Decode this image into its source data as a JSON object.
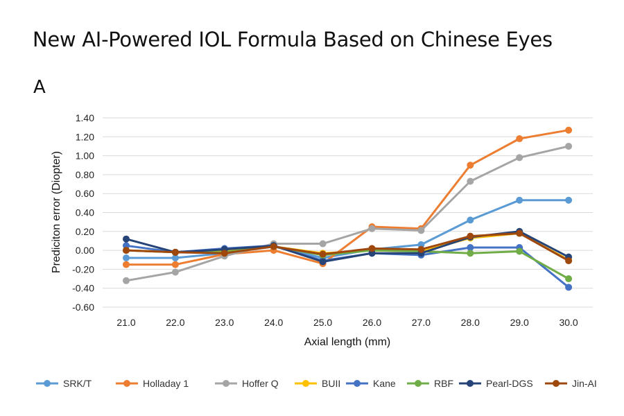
{
  "page_title": "New AI-Powered IOL Formula Based on Chinese Eyes",
  "panel_label": "A",
  "chart_data": {
    "type": "line",
    "title": "",
    "xlabel": "Axial length (mm)",
    "ylabel": "Prediciton error (Diopter)",
    "categories": [
      "21.0",
      "22.0",
      "23.0",
      "24.0",
      "25.0",
      "26.0",
      "27.0",
      "28.0",
      "29.0",
      "30.0"
    ],
    "ylim": [
      -0.6,
      1.4
    ],
    "yticks": [
      "-0.60",
      "-0.40",
      "-0.20",
      "0.00",
      "0.20",
      "0.40",
      "0.60",
      "0.80",
      "1.00",
      "1.20",
      "1.40"
    ],
    "grid": "horizontal",
    "legend_position": "bottom",
    "series": [
      {
        "name": "SRK/T",
        "color": "#5b9bd5",
        "values": [
          -0.08,
          -0.08,
          -0.03,
          0.04,
          -0.08,
          0.01,
          0.06,
          0.32,
          0.53,
          0.53
        ]
      },
      {
        "name": "Holladay 1",
        "color": "#ed7d31",
        "values": [
          -0.15,
          -0.15,
          -0.04,
          0.0,
          -0.14,
          0.25,
          0.23,
          0.9,
          1.18,
          1.27
        ]
      },
      {
        "name": "Hoffer Q",
        "color": "#a5a5a5",
        "values": [
          -0.32,
          -0.23,
          -0.06,
          0.07,
          0.07,
          0.23,
          0.21,
          0.73,
          0.98,
          1.1
        ]
      },
      {
        "name": "BUII",
        "color": "#ffc000",
        "values": [
          0.0,
          -0.02,
          -0.01,
          0.04,
          -0.03,
          0.0,
          -0.01,
          0.13,
          0.18,
          -0.1
        ]
      },
      {
        "name": "Kane",
        "color": "#4472c4",
        "values": [
          0.05,
          -0.02,
          0.02,
          0.05,
          -0.11,
          -0.03,
          -0.05,
          0.03,
          0.03,
          -0.39
        ]
      },
      {
        "name": "RBF",
        "color": "#70ad47",
        "values": [
          0.0,
          -0.02,
          -0.02,
          0.04,
          -0.05,
          0.0,
          -0.01,
          -0.03,
          -0.01,
          -0.3
        ]
      },
      {
        "name": "Pearl-DGS",
        "color": "#264478",
        "values": [
          0.12,
          -0.02,
          0.01,
          0.05,
          -0.12,
          -0.03,
          -0.03,
          0.14,
          0.2,
          -0.07
        ]
      },
      {
        "name": "Jin-AI",
        "color": "#9e480e",
        "values": [
          0.0,
          -0.02,
          -0.03,
          0.04,
          -0.04,
          0.02,
          0.01,
          0.15,
          0.18,
          -0.11
        ]
      }
    ]
  }
}
